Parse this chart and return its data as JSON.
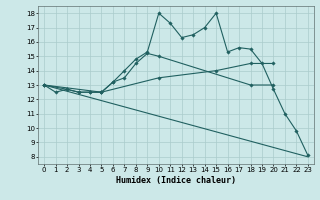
{
  "xlabel": "Humidex (Indice chaleur)",
  "xlim": [
    -0.5,
    23.5
  ],
  "ylim": [
    7.5,
    18.5
  ],
  "yticks": [
    8,
    9,
    10,
    11,
    12,
    13,
    14,
    15,
    16,
    17,
    18
  ],
  "xticks": [
    0,
    1,
    2,
    3,
    4,
    5,
    6,
    7,
    8,
    9,
    10,
    11,
    12,
    13,
    14,
    15,
    16,
    17,
    18,
    19,
    20,
    21,
    22,
    23
  ],
  "bg_color": "#cce8e8",
  "grid_color": "#aacccc",
  "line_color": "#206060",
  "series": [
    {
      "x": [
        0,
        1,
        2,
        3,
        4,
        5,
        6,
        7,
        8,
        9,
        10,
        11,
        12,
        13,
        14,
        15,
        16,
        17,
        18,
        19,
        20,
        21,
        22,
        23
      ],
      "y": [
        13,
        12.5,
        12.7,
        12.5,
        12.5,
        12.5,
        13.2,
        14.0,
        14.8,
        15.3,
        18.0,
        17.3,
        16.3,
        16.5,
        17.0,
        18.0,
        15.3,
        15.6,
        15.5,
        14.5,
        12.7,
        11.0,
        9.8,
        8.1
      ],
      "has_markers": true
    },
    {
      "x": [
        0,
        2,
        3,
        4,
        5,
        6,
        7,
        8,
        9,
        10,
        18,
        20
      ],
      "y": [
        13,
        12.7,
        12.5,
        12.5,
        12.5,
        13.2,
        13.5,
        14.5,
        15.2,
        15.0,
        13.0,
        13.0
      ],
      "has_markers": true
    },
    {
      "x": [
        0,
        5,
        10,
        15,
        18,
        20
      ],
      "y": [
        13,
        12.5,
        13.5,
        14.0,
        14.5,
        14.5
      ],
      "has_markers": true
    },
    {
      "x": [
        0,
        23
      ],
      "y": [
        13,
        8.0
      ],
      "has_markers": false
    }
  ]
}
